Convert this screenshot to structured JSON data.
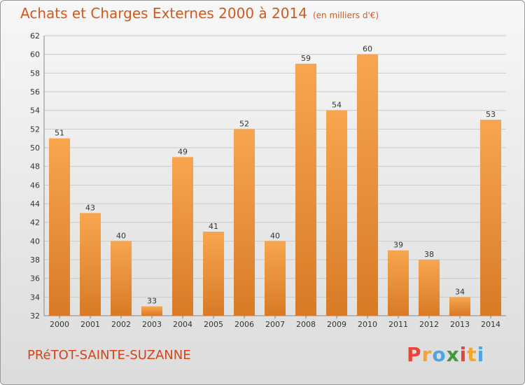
{
  "header": {
    "title": "Achats et Charges Externes 2000 à 2014",
    "unit": "(en milliers d'€)"
  },
  "footer": {
    "town": "PRéTOT-SAINTE-SUZANNE",
    "brand": "Proxiti",
    "brand_colors": [
      "#e8443a",
      "#f4a52a",
      "#4da6dd",
      "#3f9b3c",
      "#e8443a",
      "#f4a52a",
      "#4da6dd"
    ]
  },
  "colors": {
    "bar_light": "#f7a64f",
    "bar_dark": "#d97a25",
    "grid": "#c9c9c9"
  },
  "chart_data": {
    "type": "bar",
    "title": "Achats et Charges Externes 2000 à 2014",
    "subtitle": "(en milliers d'€)",
    "categories": [
      "2000",
      "2001",
      "2002",
      "2003",
      "2004",
      "2005",
      "2006",
      "2007",
      "2008",
      "2009",
      "2010",
      "2011",
      "2012",
      "2013",
      "2014"
    ],
    "values": [
      51,
      43,
      40,
      33,
      49,
      41,
      52,
      40,
      59,
      54,
      60,
      39,
      38,
      34,
      53
    ],
    "ylim": [
      32,
      62
    ],
    "yticks": [
      32,
      34,
      36,
      38,
      40,
      42,
      44,
      46,
      48,
      50,
      52,
      54,
      56,
      58,
      60,
      62
    ],
    "grid": true,
    "data_labels": true
  }
}
